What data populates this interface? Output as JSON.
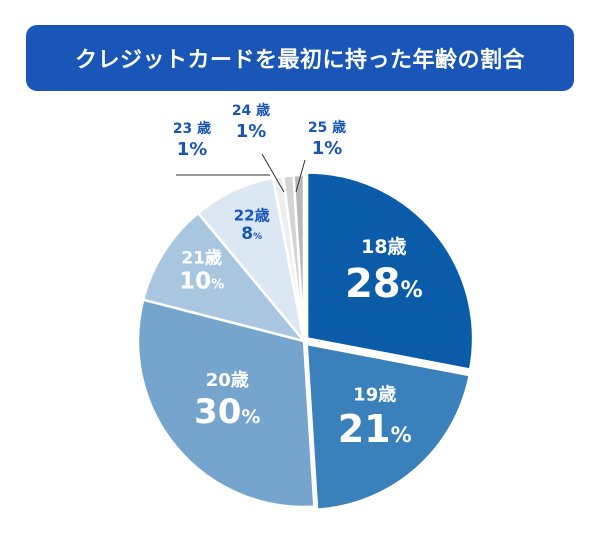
{
  "title": "クレジットカードを最初に持った年齢の割合",
  "chart_data": {
    "type": "pie",
    "title": "クレジットカードを最初に持った年齢の割合",
    "unit": "%",
    "slices": [
      {
        "label": "18歳",
        "value": 28,
        "color": "#0b5ca8"
      },
      {
        "label": "19歳",
        "value": 21,
        "color": "#3a80ba"
      },
      {
        "label": "20歳",
        "value": 30,
        "color": "#75a4cd"
      },
      {
        "label": "21歳",
        "value": 10,
        "color": "#a9c6e1"
      },
      {
        "label": "22歳",
        "value": 8,
        "color": "#dbe7f3"
      },
      {
        "label": "23歳",
        "value": 1,
        "color": "#eeeeee"
      },
      {
        "label": "24歳",
        "value": 1,
        "color": "#d4d4d4"
      },
      {
        "label": "25歳",
        "value": 1,
        "color": "#b9b9b9"
      }
    ]
  }
}
